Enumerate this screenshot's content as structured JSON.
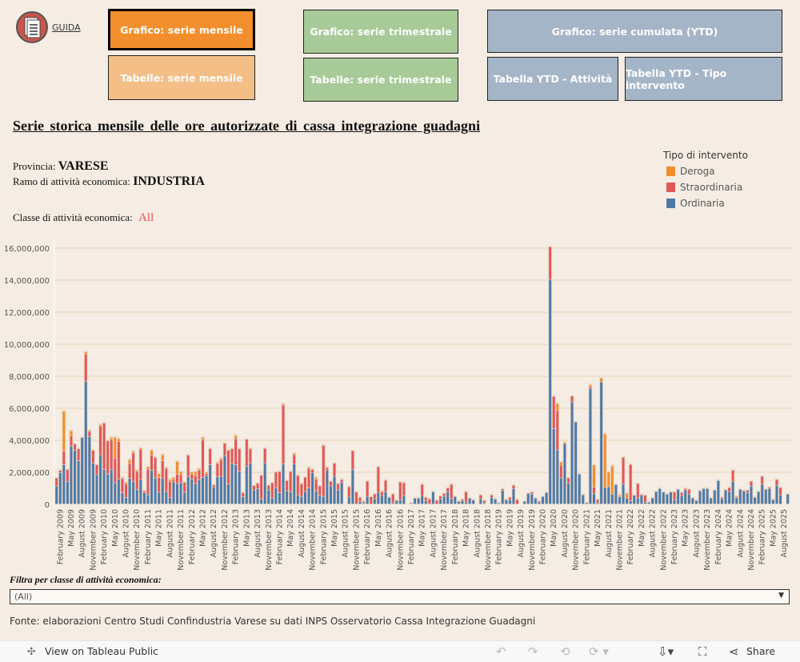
{
  "header": {
    "guida_label": "GUIDA",
    "buttons": {
      "grafico_mensile": "Grafico: serie mensile",
      "tabelle_mensile": "Tabelle: serie mensile",
      "grafico_trimestrale": "Grafico: serie trimestrale",
      "tabelle_trimestrale": "Tabelle: serie trimestrale",
      "grafico_cumulata": "Grafico: serie cumulata (YTD)",
      "tabella_ytd_attivita": "Tabella YTD - Attività",
      "tabella_ytd_tipo": "Tabella YTD - Tipo intervento"
    }
  },
  "title": "Serie storica mensile delle ore autorizzate di cassa integrazione guadagni",
  "info": {
    "provincia_label": "Provincia:",
    "provincia_value": "VARESE",
    "ramo_label": "Ramo di attività economica:",
    "ramo_value": "INDUSTRIA",
    "classe_label": "Classe di attività economica:",
    "classe_value": "All"
  },
  "colors": {
    "deroga": "#F28E2B",
    "straordinaria": "#E15759",
    "ordinaria": "#4E79A7",
    "active_btn": "#F28E2B"
  },
  "chart_data": {
    "type": "bar",
    "stacked": true,
    "unit_scale": 1000000,
    "legend_title": "Tipo di intervento",
    "legend": [
      "Deroga",
      "Straordinaria",
      "Ordinaria"
    ],
    "legend_placement": "top-right",
    "ylim": [
      0,
      16000000
    ],
    "y_ticks": [
      {
        "value": 0,
        "label": "0"
      },
      {
        "value": 2000000,
        "label": "2,000,000"
      },
      {
        "value": 4000000,
        "label": "4,000,000"
      },
      {
        "value": 6000000,
        "label": "6,000,000"
      },
      {
        "value": 8000000,
        "label": "8,000,000"
      },
      {
        "value": 10000000,
        "label": "10,000,000"
      },
      {
        "value": 12000000,
        "label": "12,000,000"
      },
      {
        "value": 14000000,
        "label": "14,000,000"
      },
      {
        "value": 16000000,
        "label": "16,000,000"
      }
    ],
    "x_range": "January 2009 - September 2025 (monthly)",
    "x_tick_labels": [
      "February 2009",
      "May 2009",
      "August 2009",
      "November 2009",
      "February 2010",
      "May 2010",
      "August 2010",
      "November 2010",
      "February 2011",
      "May 2011",
      "August 2011",
      "November 2011",
      "February 2012",
      "May 2012",
      "August 2012",
      "November 2012",
      "February 2013",
      "May 2013",
      "August 2013",
      "November 2013",
      "February 2014",
      "May 2014",
      "August 2014",
      "November 2014",
      "February 2015",
      "May 2015",
      "August 2015",
      "November 2015",
      "February 2016",
      "May 2016",
      "August 2016",
      "November 2016",
      "February 2017",
      "May 2017",
      "August 2017",
      "November 2017",
      "February 2018",
      "May 2018",
      "August 2018",
      "November 2018",
      "February 2019",
      "May 2019",
      "August 2019",
      "November 2019",
      "February 2020",
      "May 2020",
      "August 2020",
      "November 2020",
      "February 2021",
      "May 2021",
      "August 2021",
      "November 2021",
      "February 2022",
      "May 2022",
      "August 2022",
      "November 2022",
      "February 2023",
      "May 2023",
      "August 2023",
      "November 2023",
      "February 2024",
      "May 2024",
      "August 2024",
      "November 2024",
      "February 2025",
      "May 2025",
      "August 2025"
    ],
    "series": [
      {
        "name": "Ordinaria",
        "values_millions": [
          1.13,
          1.96,
          2.46,
          1.41,
          3.63,
          3.36,
          2.71,
          4.16,
          7.66,
          4.21,
          2.56,
          1.83,
          3.08,
          2.16,
          1.88,
          2.16,
          1.33,
          1.56,
          0.7,
          0.41,
          1.61,
          1.41,
          0.91,
          1.53,
          0.7,
          0.58,
          2.11,
          1.63,
          0.73,
          1.63,
          0.78,
          0.41,
          1.38,
          1.28,
          1.33,
          0.73,
          1.73,
          1.56,
          1.28,
          1.53,
          1.66,
          1.78,
          2.46,
          1.06,
          1.7,
          1.73,
          3.03,
          1.25,
          2.53,
          2.46,
          2.05,
          0.45,
          2.36,
          2.56,
          0.88,
          0.96,
          0.3,
          2.58,
          0.88,
          0.38,
          1.0,
          0.7,
          2.5,
          0.83,
          0.78,
          2.5,
          0.58,
          0.48,
          0.78,
          1.0,
          1.97,
          0.83,
          0.53,
          0.48,
          2.13,
          1.13,
          1.73,
          0.88,
          1.37,
          0,
          0.43,
          2.17,
          0,
          0.15,
          0.08,
          0.48,
          0,
          0.33,
          0.73,
          0.53,
          0.78,
          0.42,
          0.08,
          0.23,
          0.28,
          0.53,
          0,
          0.07,
          0.37,
          0.37,
          0.53,
          0.22,
          0,
          0.77,
          0,
          0.32,
          0.48,
          0.77,
          0.33,
          0.47,
          0.17,
          0.22,
          0.12,
          0.37,
          0.25,
          0,
          0.32,
          0.07,
          0,
          0.42,
          0.32,
          0.07,
          0.87,
          0.27,
          0.27,
          0.97,
          0,
          0,
          0.17,
          0.67,
          0.62,
          0.37,
          0.13,
          0.47,
          0.72,
          14.03,
          4.72,
          3.38,
          1.63,
          3.78,
          1.3,
          6.38,
          5.13,
          1.88,
          0.58,
          0.08,
          7.22,
          0.67,
          0.08,
          7.62,
          1.03,
          1.08,
          0.62,
          1.22,
          0.45,
          1.23,
          0.37,
          0.2,
          0.55,
          0.38,
          0.55,
          0.12,
          0.12,
          0.38,
          0.78,
          0.97,
          0.75,
          0.62,
          0.75,
          0.28,
          0.92,
          0.53,
          0.88,
          0.62,
          0.38,
          0.22,
          0.83,
          0.97,
          0.97,
          0.38,
          0.87,
          1.47,
          0.33,
          0.88,
          0.78,
          1.42,
          0.38,
          0.92,
          0.83,
          0.72,
          1.12,
          0.42,
          0.78,
          1.23,
          0.92,
          0.97,
          0.28,
          1.17,
          0.58,
          0,
          0.62
        ]
      },
      {
        "name": "Straordinaria",
        "values_millions": [
          0.5,
          0.15,
          0.84,
          0.75,
          0.62,
          0.39,
          0.75,
          0,
          1.7,
          0.32,
          0.8,
          0.63,
          1.78,
          2.9,
          2.08,
          1.87,
          1.53,
          2.35,
          0.88,
          0.84,
          0.92,
          1.79,
          1.12,
          1.88,
          0.13,
          1.58,
          0.95,
          1.28,
          0.93,
          1.07,
          1.43,
          1.0,
          0.12,
          0.58,
          0.5,
          0.63,
          1.33,
          0.3,
          0.5,
          0.58,
          2.34,
          0.13,
          1.0,
          0.14,
          0.83,
          1.05,
          0.77,
          2.11,
          0.93,
          1.62,
          1.41,
          0.26,
          1.69,
          0.9,
          0.28,
          0.34,
          1.5,
          0.89,
          0.29,
          0.95,
          1.0,
          1.33,
          3.67,
          0.64,
          1.25,
          0.58,
          1.2,
          0.79,
          0.89,
          1.22,
          0.2,
          0.72,
          0.6,
          3.19,
          0.15,
          0.29,
          0.82,
          0.4,
          0.16,
          0,
          0.65,
          1.16,
          0.75,
          0.27,
          0.09,
          0.95,
          0.45,
          0.3,
          1.6,
          0.25,
          0.7,
          0,
          0.55,
          0,
          1.09,
          0.8,
          0,
          0,
          0,
          0,
          0.7,
          0.2,
          0.32,
          0,
          0.23,
          0.18,
          0.19,
          0.23,
          0.9,
          0,
          0,
          0.08,
          0.65,
          0,
          0,
          0,
          0.25,
          0.15,
          0,
          0.15,
          0,
          0,
          0.08,
          0,
          0.15,
          0.2,
          0.28,
          0,
          0,
          0,
          0.13,
          0,
          0.07,
          0,
          0,
          2.04,
          2.0,
          2.45,
          0.79,
          0,
          0.33,
          0.37,
          0,
          0,
          0,
          0,
          0.11,
          0.38,
          0.2,
          0,
          0,
          0,
          0,
          0,
          0,
          1.69,
          0,
          2.27,
          0,
          0.9,
          0.05,
          0.43,
          0,
          0,
          0,
          0,
          0,
          0,
          0,
          0.47,
          0,
          0.19,
          0.09,
          0.3,
          0,
          0,
          0,
          0,
          0,
          0,
          0,
          0,
          0.09,
          0,
          0.25,
          0.7,
          0.09,
          0,
          0,
          0.15,
          0.3,
          0,
          0,
          0.5,
          0,
          0.08,
          0,
          0.36,
          0.45,
          0,
          0
        ]
      },
      {
        "name": "Deroga",
        "values_millions": [
          0,
          0,
          2.5,
          0,
          0.33,
          0,
          0,
          0,
          0.14,
          0.08,
          0,
          0,
          0.1,
          0,
          0,
          0.13,
          1.3,
          0.17,
          0.08,
          0.11,
          0.25,
          0.1,
          0.08,
          0.09,
          0,
          0.17,
          0.3,
          0,
          0.25,
          0.38,
          0.07,
          0.12,
          0.16,
          0.8,
          0.2,
          0,
          0,
          0.14,
          0.25,
          0.1,
          0.16,
          0.09,
          0,
          0,
          0.08,
          0.08,
          0,
          0,
          0,
          0.2,
          0,
          0,
          0,
          0,
          0,
          0,
          0,
          0,
          0,
          0,
          0,
          0,
          0.08,
          0,
          0,
          0.09,
          0,
          0,
          0,
          0.08,
          0,
          0.12,
          0,
          0,
          0,
          0,
          0,
          0,
          0,
          0,
          0,
          0,
          0,
          0,
          0,
          0,
          0,
          0,
          0,
          0,
          0,
          0,
          0,
          0,
          0,
          0,
          0,
          0,
          0,
          0,
          0,
          0,
          0,
          0,
          0,
          0,
          0,
          0,
          0,
          0,
          0,
          0,
          0,
          0,
          0,
          0,
          0,
          0,
          0,
          0,
          0,
          0,
          0,
          0,
          0,
          0,
          0,
          0,
          0,
          0,
          0,
          0,
          0,
          0,
          0,
          0,
          0,
          0.45,
          0.2,
          0.08,
          0,
          0,
          0,
          0,
          0,
          0,
          0.12,
          1.39,
          0,
          0.25,
          3.35,
          0.92,
          1.75,
          0,
          0.11,
          0,
          0.31,
          0,
          0,
          0,
          0,
          0,
          0,
          0,
          0,
          0,
          0,
          0,
          0,
          0,
          0,
          0,
          0,
          0,
          0,
          0,
          0,
          0,
          0,
          0,
          0,
          0,
          0,
          0,
          0,
          0,
          0,
          0,
          0,
          0,
          0,
          0,
          0,
          0,
          0,
          0,
          0,
          0,
          0,
          0,
          0,
          0,
          0,
          0,
          0,
          0,
          0,
          0
        ]
      }
    ]
  },
  "filter": {
    "label": "Filtra per classe di attività economica:",
    "value": "(All)"
  },
  "source": "Fonte: elaborazioni Centro Studi Confindustria Varese su dati INPS Osservatorio Cassa Integrazione Guadagni",
  "toolbar": {
    "view_label": "View on Tableau Public",
    "share_label": "Share"
  }
}
